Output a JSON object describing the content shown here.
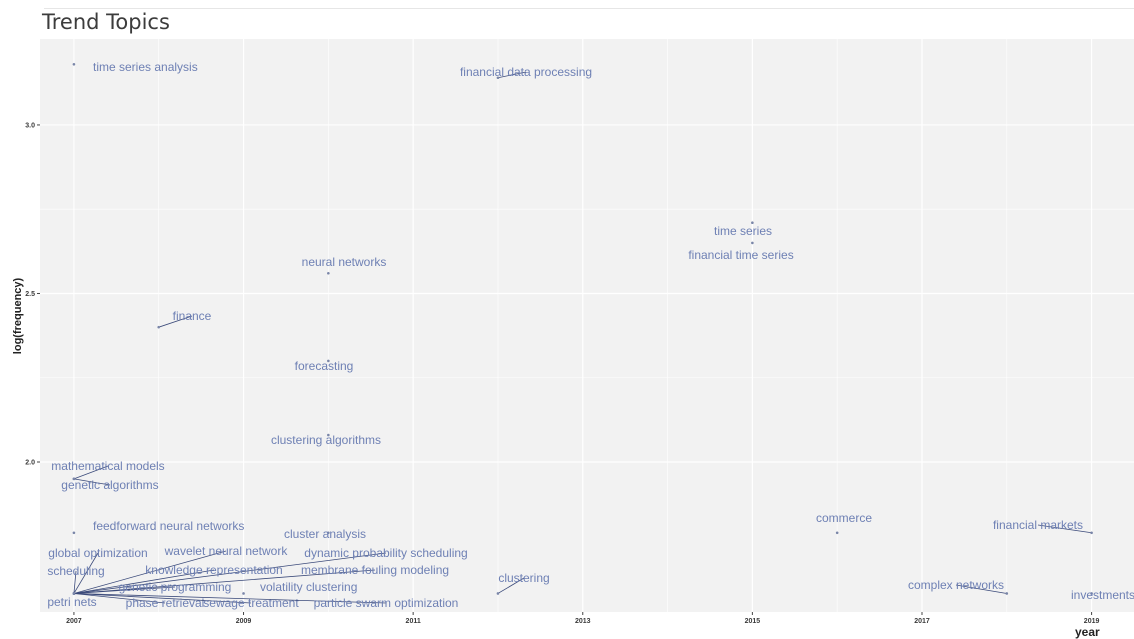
{
  "chart_data": {
    "type": "scatter",
    "title": "Trend Topics",
    "xlabel": "year",
    "ylabel": "log(frequency)",
    "xlim": [
      2006.6,
      2019.5
    ],
    "ylim": [
      1.555,
      3.255
    ],
    "xticks": [
      2007,
      2009,
      2011,
      2013,
      2015,
      2017,
      2019
    ],
    "yticks": [
      2.0,
      2.5,
      3.0
    ],
    "ytick_labels": [
      "2.0",
      "2.5",
      "3.0"
    ],
    "grid": true,
    "points": [
      {
        "label": "time series analysis",
        "x": 2007,
        "y": 3.18
      },
      {
        "label": "financial data processing",
        "x": 2012,
        "y": 3.14
      },
      {
        "label": "time series",
        "x": 2015,
        "y": 2.71
      },
      {
        "label": "financial time series",
        "x": 2015,
        "y": 2.65
      },
      {
        "label": "neural networks",
        "x": 2010,
        "y": 2.56
      },
      {
        "label": "finance",
        "x": 2008,
        "y": 2.4
      },
      {
        "label": "forecasting",
        "x": 2010,
        "y": 2.3
      },
      {
        "label": "clustering algorithms",
        "x": 2010,
        "y": 2.08
      },
      {
        "label": "mathematical models",
        "x": 2007,
        "y": 1.95
      },
      {
        "label": "genetic algorithms",
        "x": 2007,
        "y": 1.95
      },
      {
        "label": "feedforward neural networks",
        "x": 2007,
        "y": 1.79
      },
      {
        "label": "cluster analysis",
        "x": 2010,
        "y": 1.79
      },
      {
        "label": "commerce",
        "x": 2016,
        "y": 1.79
      },
      {
        "label": "financial markets",
        "x": 2019,
        "y": 1.79
      },
      {
        "label": "global optimization",
        "x": 2007,
        "y": 1.61
      },
      {
        "label": "wavelet neural network",
        "x": 2007,
        "y": 1.61
      },
      {
        "label": "dynamic probability scheduling",
        "x": 2007,
        "y": 1.61
      },
      {
        "label": "scheduling",
        "x": 2007,
        "y": 1.61
      },
      {
        "label": "knowledge representation",
        "x": 2007,
        "y": 1.61
      },
      {
        "label": "membrane fouling modeling",
        "x": 2007,
        "y": 1.61
      },
      {
        "label": "genetic programming",
        "x": 2007,
        "y": 1.61
      },
      {
        "label": "volatility clustering",
        "x": 2009,
        "y": 1.61
      },
      {
        "label": "petri nets",
        "x": 2007,
        "y": 1.61
      },
      {
        "label": "phase retrieval",
        "x": 2007,
        "y": 1.61
      },
      {
        "label": "sewage treatment",
        "x": 2007,
        "y": 1.61
      },
      {
        "label": "particle swarm optimization",
        "x": 2007,
        "y": 1.61
      },
      {
        "label": "clustering",
        "x": 2012,
        "y": 1.61
      },
      {
        "label": "complex networks",
        "x": 2018,
        "y": 1.61
      },
      {
        "label": "investments",
        "x": 2019,
        "y": 1.61
      }
    ]
  },
  "colors": {
    "panel": "#f2f2f2",
    "grid": "#ffffff",
    "label": "#6e80b4",
    "point": "#7a86a8",
    "leader": "#3b4a7a"
  }
}
